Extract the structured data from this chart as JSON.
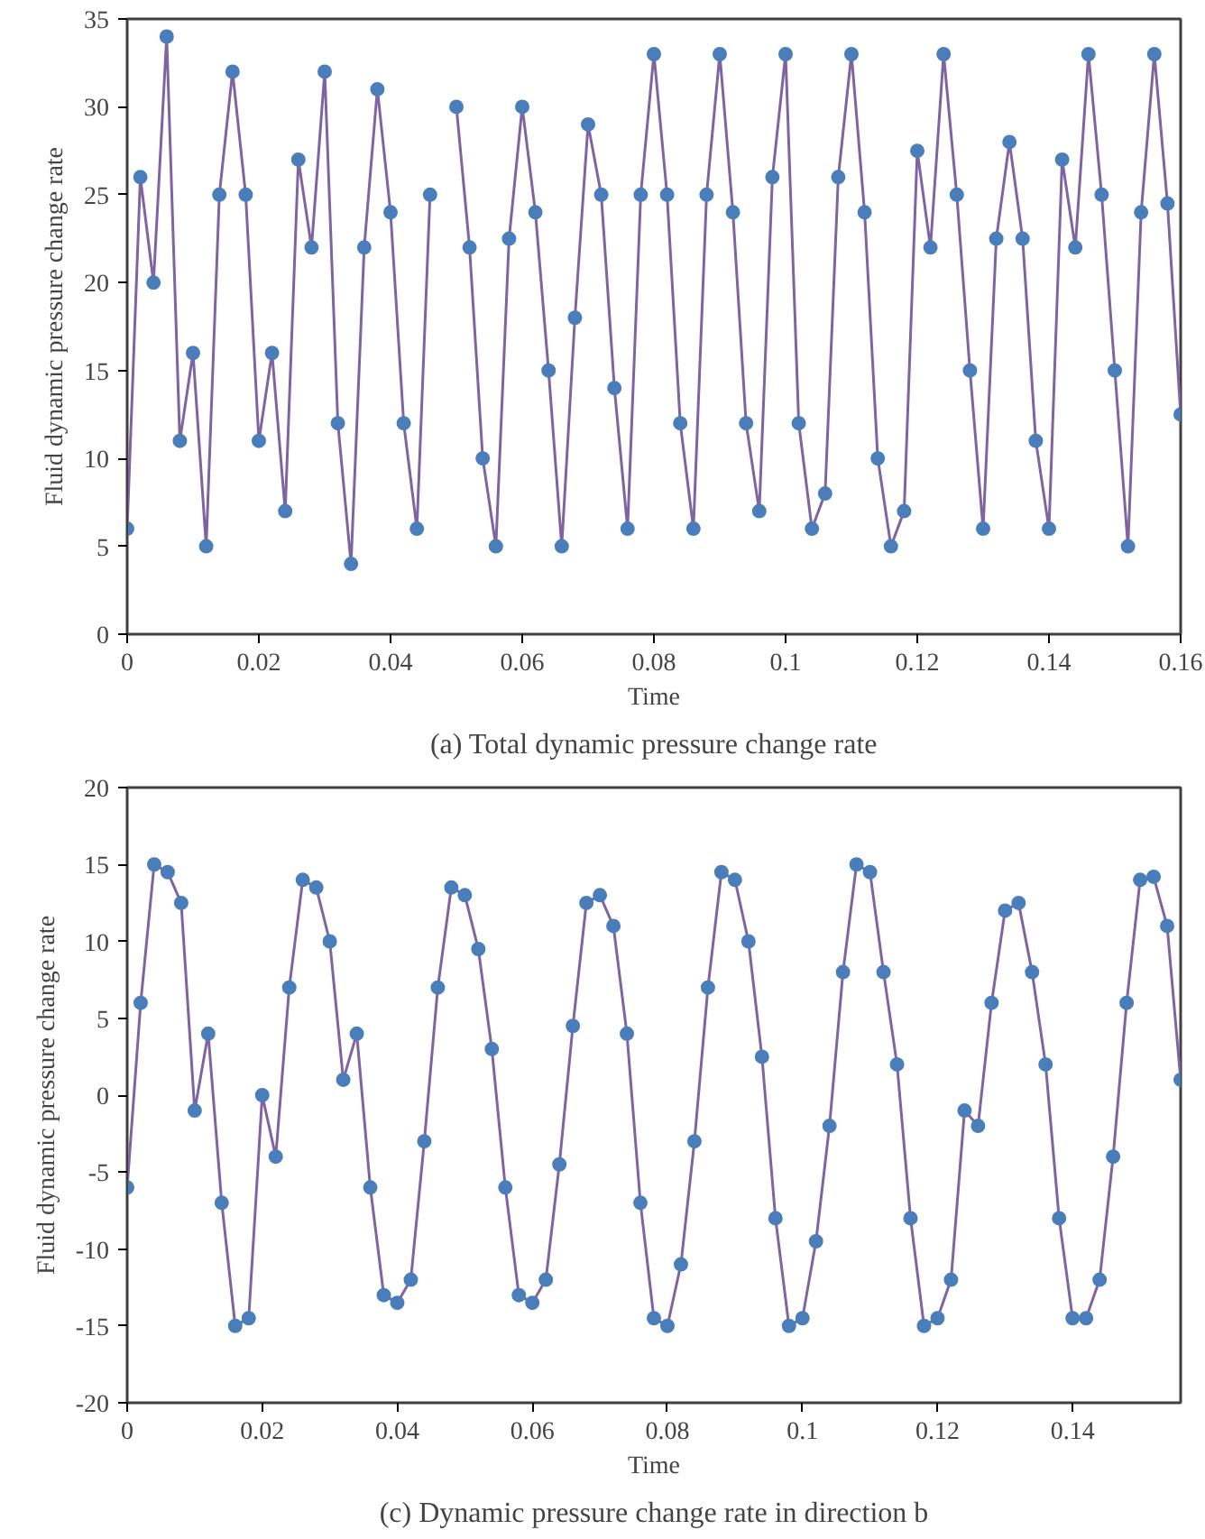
{
  "chart_data": [
    {
      "type": "line",
      "title": "(a) Total dynamic pressure change rate",
      "xlabel": "Time",
      "ylabel": "Fluid dynamic pressure change rate",
      "x": [
        0,
        0.002,
        0.004,
        0.006,
        0.008,
        0.01,
        0.012,
        0.014,
        0.016,
        0.018,
        0.02,
        0.022,
        0.024,
        0.026,
        0.028,
        0.03,
        0.032,
        0.034,
        0.036,
        0.038,
        0.04,
        0.042,
        0.044,
        0.046,
        0.048,
        0.05,
        0.052,
        0.054,
        0.056,
        0.058,
        0.06,
        0.062,
        0.064,
        0.066,
        0.068,
        0.07,
        0.072,
        0.074,
        0.076,
        0.078,
        0.08,
        0.082,
        0.084,
        0.086,
        0.088,
        0.09,
        0.092,
        0.094,
        0.096,
        0.098,
        0.1,
        0.102,
        0.104,
        0.106,
        0.108,
        0.11,
        0.112,
        0.114,
        0.116,
        0.118,
        0.12,
        0.122,
        0.124,
        0.126,
        0.128,
        0.13,
        0.132,
        0.134,
        0.136,
        0.138,
        0.14,
        0.142,
        0.144,
        0.146,
        0.148,
        0.15,
        0.152,
        0.154,
        0.156,
        0.158,
        0.16
      ],
      "series": [
        {
          "color": "#4a7ebb",
          "values": [
            6,
            26,
            20,
            34,
            11,
            16,
            5,
            25,
            32,
            25,
            11,
            16,
            7,
            27,
            22,
            32,
            12,
            4,
            22,
            31,
            24,
            12,
            6,
            25,
            null,
            30,
            22,
            10,
            5,
            22.5,
            30,
            24,
            15,
            5,
            18,
            29,
            25,
            14,
            6,
            25,
            33,
            25,
            12,
            6,
            25,
            33,
            24,
            12,
            7,
            26,
            33,
            12,
            6,
            8,
            26,
            33,
            24,
            10,
            5,
            7,
            27.5,
            22,
            33,
            25,
            15,
            6,
            22.5,
            28,
            22.5,
            11,
            6,
            27,
            22,
            33,
            25,
            15,
            5,
            24,
            33,
            24.5,
            12.5
          ]
        }
      ],
      "xlim": [
        0,
        0.16
      ],
      "xticks": [
        0,
        0.02,
        0.04,
        0.06,
        0.08,
        0.1,
        0.12,
        0.14,
        0.16
      ],
      "ylim": [
        0,
        35
      ],
      "yticks": [
        0,
        5,
        10,
        15,
        20,
        25,
        30,
        35
      ],
      "grid": false,
      "marker": "circle",
      "line_style": "solid"
    },
    {
      "type": "line",
      "title": "(c) Dynamic pressure change rate in direction b",
      "xlabel": "Time",
      "ylabel": "Fluid dynamic pressure change rate",
      "x": [
        0,
        0.002,
        0.004,
        0.006,
        0.008,
        0.01,
        0.012,
        0.014,
        0.016,
        0.018,
        0.02,
        0.022,
        0.024,
        0.026,
        0.028,
        0.03,
        0.032,
        0.034,
        0.036,
        0.038,
        0.04,
        0.042,
        0.044,
        0.046,
        0.048,
        0.05,
        0.052,
        0.054,
        0.056,
        0.058,
        0.06,
        0.062,
        0.064,
        0.066,
        0.068,
        0.07,
        0.072,
        0.074,
        0.076,
        0.078,
        0.08,
        0.082,
        0.084,
        0.086,
        0.088,
        0.09,
        0.092,
        0.094,
        0.096,
        0.098,
        0.1,
        0.102,
        0.104,
        0.106,
        0.108,
        0.11,
        0.112,
        0.114,
        0.116,
        0.118,
        0.12,
        0.122,
        0.124,
        0.126,
        0.128,
        0.13,
        0.132,
        0.134,
        0.136,
        0.138,
        0.14,
        0.142,
        0.144,
        0.146,
        0.148,
        0.15,
        0.152,
        0.154,
        0.156
      ],
      "series": [
        {
          "color": "#4a7ebb",
          "values": [
            -6,
            6,
            15,
            14.5,
            12.5,
            -1,
            4,
            -7,
            -15,
            -14.5,
            0,
            -4,
            7,
            14,
            13.5,
            10,
            1,
            4,
            -6,
            -13,
            -13.5,
            -12,
            -3,
            7,
            13.5,
            13,
            9.5,
            3,
            -6,
            -13,
            -13.5,
            -12,
            -4.5,
            4.5,
            12.5,
            13,
            11,
            4,
            -7,
            -14.5,
            -15,
            -11,
            -3,
            7,
            14.5,
            14,
            10,
            2.5,
            -8,
            -15,
            -14.5,
            -9.5,
            -2,
            8,
            15,
            14.5,
            8,
            2,
            -8,
            -15,
            -14.5,
            -12,
            -1,
            -2,
            6,
            12,
            12.5,
            8,
            2,
            -8,
            -14.5,
            -14.5,
            -12,
            -4,
            6,
            14,
            14.2,
            11,
            1
          ]
        }
      ],
      "xlim": [
        0,
        0.156
      ],
      "xticks": [
        0,
        0.02,
        0.04,
        0.06,
        0.08,
        0.1,
        0.12,
        0.14
      ],
      "ylim": [
        -20,
        20
      ],
      "yticks": [
        -20,
        -15,
        -10,
        -5,
        0,
        5,
        10,
        15,
        20
      ],
      "grid": false,
      "marker": "circle",
      "line_style": "solid"
    }
  ]
}
